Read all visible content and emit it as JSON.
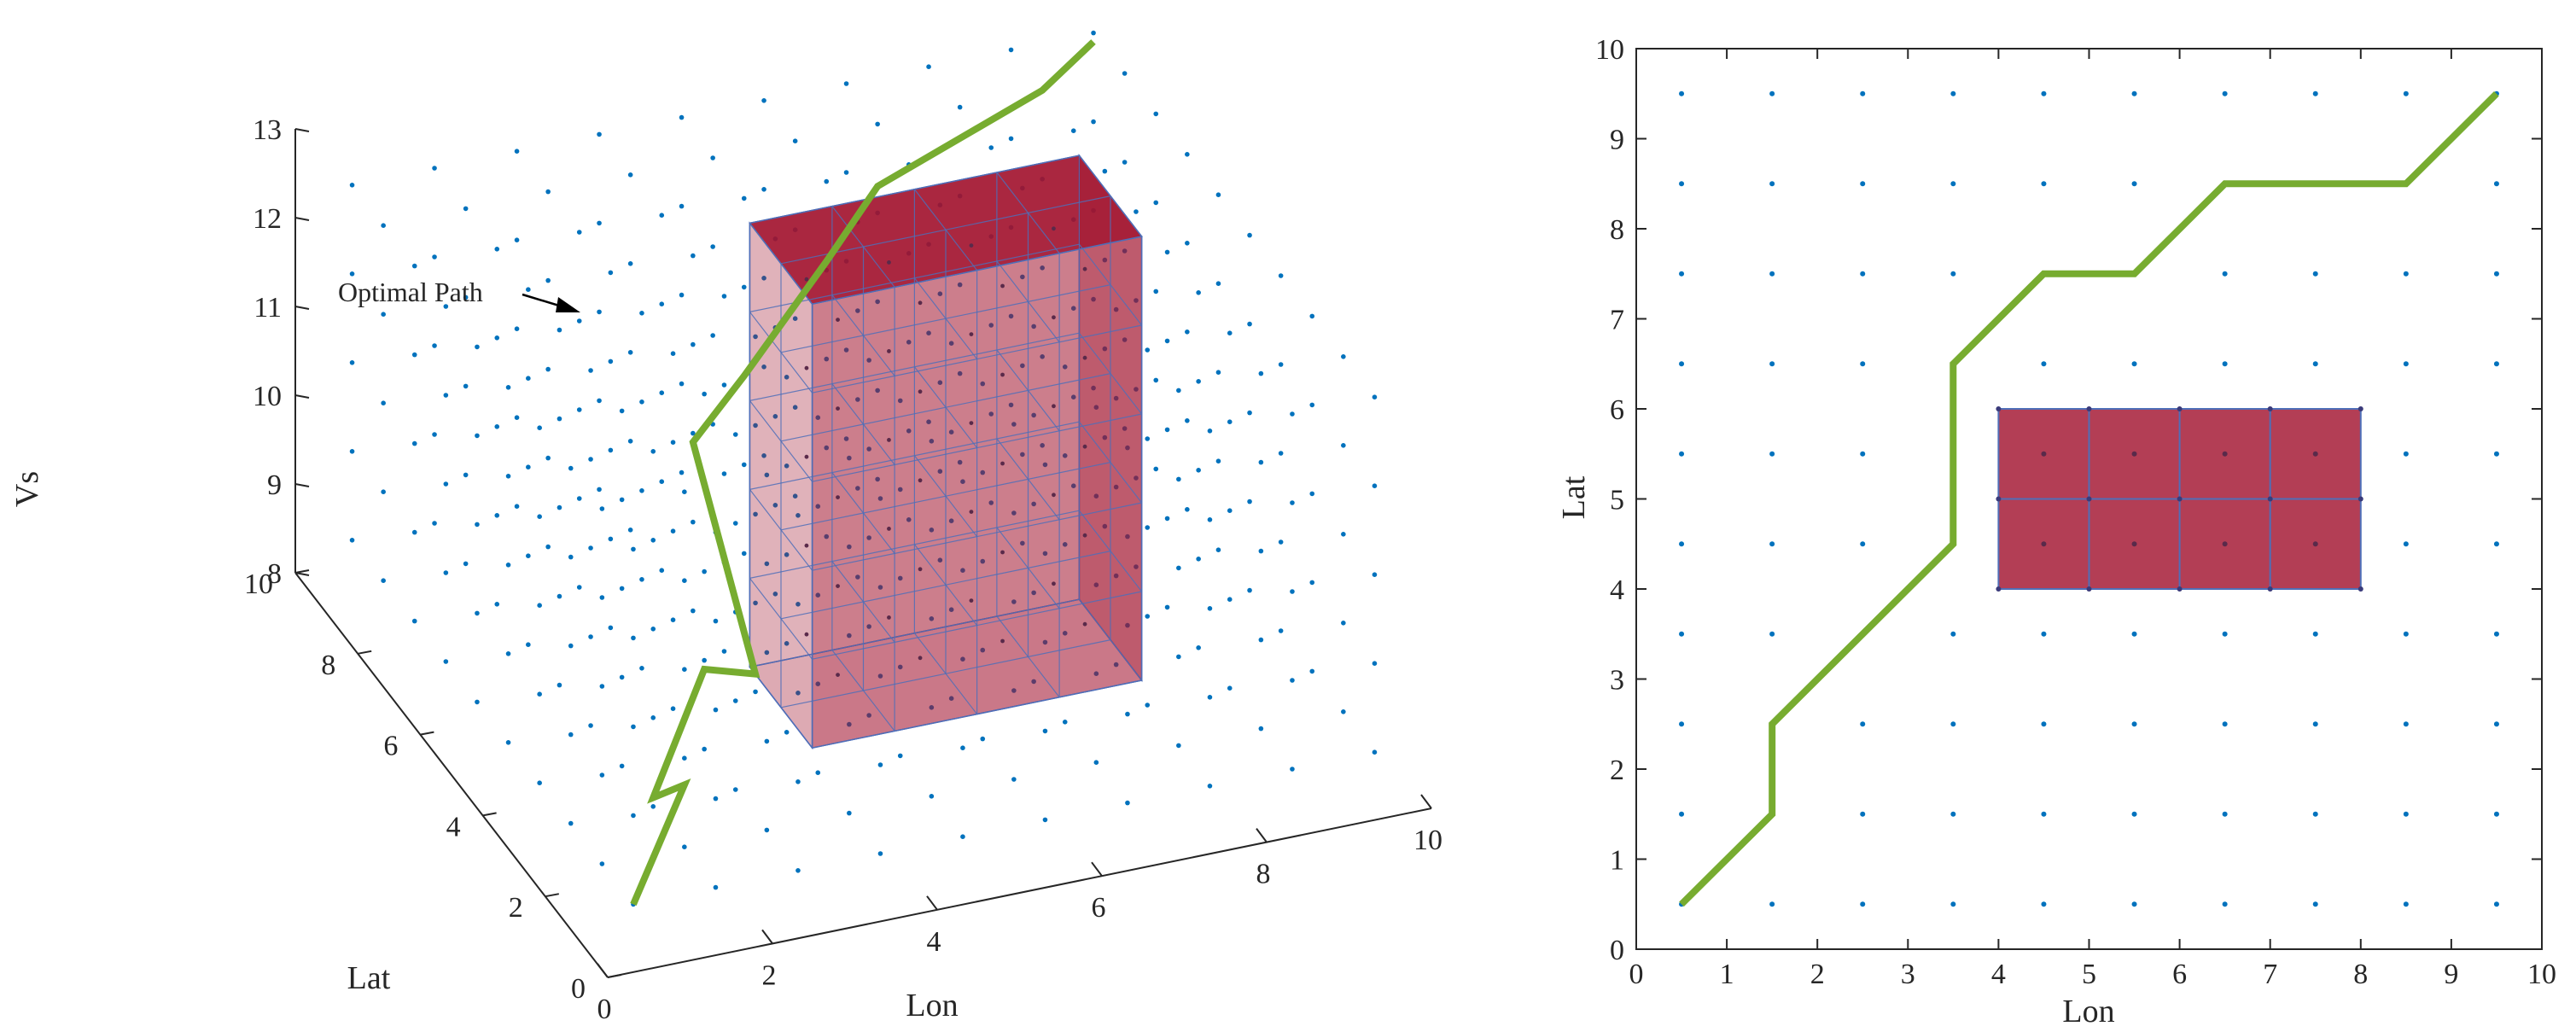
{
  "chart_data": [
    {
      "type": "scatter",
      "view": "3d",
      "title": "",
      "xlabel": "Lon",
      "ylabel": "Lat",
      "zlabel": "Vs",
      "xlim": [
        0,
        10
      ],
      "ylim": [
        0,
        10
      ],
      "zlim": [
        8,
        13
      ],
      "x_ticks": [
        0,
        2,
        4,
        6,
        8,
        10
      ],
      "y_ticks": [
        0,
        2,
        4,
        6,
        8,
        10
      ],
      "z_ticks": [
        8,
        9,
        10,
        11,
        12,
        13
      ],
      "grid_points": {
        "x": [
          0.5,
          1.5,
          2.5,
          3.5,
          4.5,
          5.5,
          6.5,
          7.5,
          8.5,
          9.5
        ],
        "y": [
          0.5,
          1.5,
          2.5,
          3.5,
          4.5,
          5.5,
          6.5,
          7.5,
          8.5,
          9.5
        ],
        "z": [
          8.5,
          9.5,
          10.5,
          11.5,
          12.5
        ],
        "color": "#0072bd"
      },
      "obstacle": {
        "x": [
          4,
          8
        ],
        "y": [
          4,
          6
        ],
        "z": [
          8,
          13
        ],
        "color": "#a2142f"
      },
      "series": [
        {
          "color": "#77ac30",
          "points": [
            [
              0.5,
              0.5,
              8.5
            ],
            [
              1.5,
              1.5,
              9.2
            ],
            [
              1.5,
              2.5,
              8.6
            ],
            [
              2.5,
              3.5,
              9.4
            ],
            [
              3.5,
              4.5,
              8.7
            ],
            [
              3.5,
              6.5,
              10.4
            ],
            [
              4.5,
              7.5,
              10.5
            ],
            [
              5.5,
              7.5,
              11.6
            ],
            [
              6.5,
              8.5,
              11.8
            ],
            [
              8.5,
              8.5,
              12.5
            ],
            [
              9.5,
              9.5,
              12.4
            ]
          ]
        }
      ],
      "annotations": [
        {
          "text": "Optimal Path",
          "x": 4.5,
          "y": 7.5,
          "z": 12.2
        }
      ]
    },
    {
      "type": "line",
      "view": "2d",
      "title": "",
      "xlabel": "Lon",
      "ylabel": "Lat",
      "xlim": [
        0,
        10
      ],
      "ylim": [
        0,
        10
      ],
      "x_ticks": [
        0,
        1,
        2,
        3,
        4,
        5,
        6,
        7,
        8,
        9,
        10
      ],
      "y_ticks": [
        0,
        1,
        2,
        3,
        4,
        5,
        6,
        7,
        8,
        9,
        10
      ],
      "grid_points": {
        "x": [
          0.5,
          1.5,
          2.5,
          3.5,
          4.5,
          5.5,
          6.5,
          7.5,
          8.5,
          9.5
        ],
        "y": [
          0.5,
          1.5,
          2.5,
          3.5,
          4.5,
          5.5,
          6.5,
          7.5,
          8.5,
          9.5
        ],
        "color": "#0072bd"
      },
      "obstacle": {
        "x": [
          4,
          8
        ],
        "y": [
          4,
          6
        ],
        "color": "#a2142f"
      },
      "series": [
        {
          "color": "#77ac30",
          "x": [
            0.5,
            1.5,
            1.5,
            2.5,
            3.5,
            3.5,
            4.5,
            5.5,
            6.5,
            8.5,
            9.5
          ],
          "y": [
            0.5,
            1.5,
            2.5,
            3.5,
            4.5,
            6.5,
            7.5,
            7.5,
            8.5,
            8.5,
            9.5
          ]
        }
      ]
    }
  ]
}
